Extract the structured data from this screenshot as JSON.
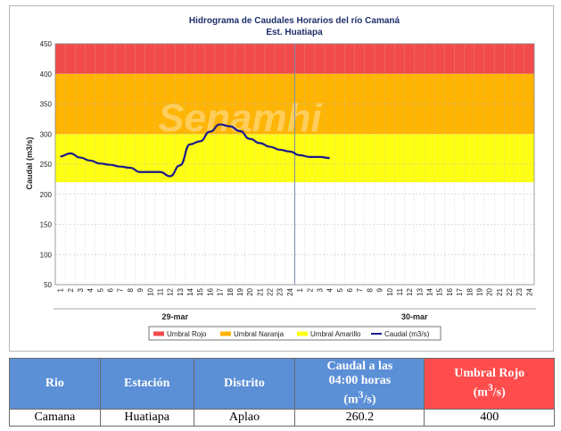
{
  "chart_data": {
    "type": "line",
    "title": "Hidrograma de Caudales Horarios del río Camaná",
    "subtitle": "Est. Huatiapa",
    "ylabel": "Caudal  (m3/s)",
    "ylim": [
      50,
      450
    ],
    "yticks": [
      50,
      100,
      150,
      200,
      250,
      300,
      350,
      400,
      450
    ],
    "x_tick_labels": [
      "1",
      "2",
      "3",
      "4",
      "5",
      "6",
      "7",
      "8",
      "9",
      "10",
      "11",
      "12",
      "13",
      "14",
      "15",
      "16",
      "17",
      "18",
      "19",
      "20",
      "21",
      "22",
      "23",
      "24",
      "1",
      "2",
      "3",
      "4",
      "5",
      "6",
      "7",
      "8",
      "9",
      "10",
      "11",
      "12",
      "13",
      "14",
      "15",
      "16",
      "17",
      "18",
      "19",
      "20",
      "21",
      "22",
      "23",
      "24"
    ],
    "day_labels": [
      "29-mar",
      "30-mar"
    ],
    "thresholds": [
      {
        "name": "Umbral Rojo",
        "from": 400,
        "to": 450,
        "color": "#f24b4b"
      },
      {
        "name": "Umbral Naranja",
        "from": 300,
        "to": 400,
        "color": "#ffb400"
      },
      {
        "name": "Umbral Amarillo",
        "from": 220,
        "to": 300,
        "color": "#ffff14"
      }
    ],
    "series": [
      {
        "name": "Caudal (m3/s)",
        "color": "#1a1a8c",
        "hours": [
          1,
          2,
          3,
          4,
          5,
          6,
          7,
          8,
          9,
          10,
          11,
          12,
          13,
          14,
          15,
          16,
          17,
          18,
          19,
          20,
          21,
          22,
          23,
          24,
          25,
          26,
          27,
          28
        ],
        "values": [
          263,
          268,
          261,
          256,
          251,
          249,
          246,
          244,
          237,
          237,
          237,
          230,
          248,
          283,
          288,
          304,
          316,
          313,
          305,
          292,
          285,
          279,
          274,
          271,
          265,
          262,
          262,
          260.2
        ]
      }
    ],
    "legend_entries": [
      "Umbral Rojo",
      "Umbral Naranja",
      "Umbral Amarillo",
      "Caudal (m3/s)"
    ]
  },
  "watermark": "Senamhi",
  "table": {
    "headers": [
      "Rio",
      "Estación",
      "Distrito",
      "Caudal a las 04:00 horas (m³/s)",
      "Umbral Rojo (m³/s)"
    ],
    "header_caudal_lines": [
      "Caudal a las",
      "04:00 horas",
      "(m",
      "3",
      "/s)"
    ],
    "header_umbral_lines": [
      "Umbral Rojo",
      "(m",
      "3",
      "/s)"
    ],
    "row": [
      "Camana",
      "Huatiapa",
      "Aplao",
      "260.2",
      "400"
    ],
    "header_blue": "#5b8fd6",
    "header_red": "#ff4d4d"
  }
}
